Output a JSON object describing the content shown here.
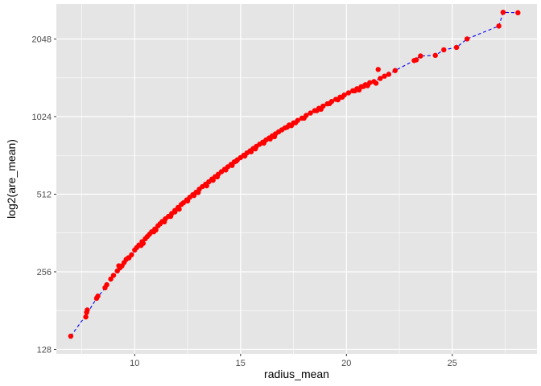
{
  "chart_data": {
    "type": "scatter",
    "title": "",
    "xlabel": "radius_mean",
    "ylabel": "log2(are_mean)",
    "y_scale": "log2",
    "xlim": [
      6.3,
      29.0
    ],
    "ylim": [
      123,
      2800
    ],
    "x_ticks": [
      10,
      15,
      20,
      25
    ],
    "x_tick_labels": [
      "10",
      "15",
      "20",
      "25"
    ],
    "y_ticks": [
      128,
      256,
      512,
      1024,
      2048
    ],
    "y_tick_labels": [
      "128",
      "256",
      "512",
      "1024",
      "2048"
    ],
    "grid": true,
    "legend": "none",
    "colors": {
      "panel_background": "#e5e5e5",
      "grid_major": "#ffffff",
      "points": "#ff0000",
      "trend_line": "#0000ff"
    },
    "series": [
      {
        "kind": "points",
        "points": [
          [
            6.98,
            144
          ],
          [
            7.69,
            171
          ],
          [
            7.73,
            178
          ],
          [
            7.76,
            182
          ],
          [
            8.2,
            202
          ],
          [
            8.26,
            206
          ],
          [
            8.6,
            222
          ],
          [
            8.68,
            228
          ],
          [
            8.87,
            240
          ],
          [
            9.0,
            248
          ],
          [
            9.18,
            258
          ],
          [
            9.3,
            265
          ],
          [
            9.4,
            270
          ],
          [
            9.5,
            278
          ],
          [
            9.6,
            286
          ],
          [
            9.73,
            290
          ],
          [
            9.85,
            298
          ],
          [
            10.0,
            311
          ],
          [
            10.1,
            318
          ],
          [
            10.2,
            325
          ],
          [
            10.35,
            335
          ],
          [
            10.5,
            344
          ],
          [
            10.6,
            351
          ],
          [
            10.7,
            358
          ],
          [
            10.8,
            366
          ],
          [
            10.95,
            375
          ],
          [
            11.1,
            386
          ],
          [
            11.2,
            393
          ],
          [
            11.3,
            401
          ],
          [
            11.45,
            411
          ],
          [
            11.6,
            420
          ],
          [
            11.75,
            431
          ],
          [
            11.9,
            443
          ],
          [
            12.05,
            455
          ],
          [
            12.2,
            467
          ],
          [
            12.3,
            474
          ],
          [
            12.45,
            486
          ],
          [
            12.6,
            498
          ],
          [
            12.75,
            510
          ],
          [
            12.9,
            521
          ],
          [
            13.05,
            535
          ],
          [
            13.2,
            548
          ],
          [
            13.35,
            560
          ],
          [
            13.5,
            572
          ],
          [
            13.65,
            586
          ],
          [
            13.8,
            599
          ],
          [
            13.95,
            612
          ],
          [
            14.1,
            626
          ],
          [
            14.25,
            640
          ],
          [
            14.4,
            654
          ],
          [
            14.55,
            668
          ],
          [
            14.7,
            683
          ],
          [
            14.85,
            696
          ],
          [
            15.0,
            710
          ],
          [
            15.15,
            725
          ],
          [
            15.3,
            740
          ],
          [
            15.45,
            754
          ],
          [
            15.6,
            770
          ],
          [
            15.75,
            785
          ],
          [
            15.9,
            800
          ],
          [
            16.05,
            815
          ],
          [
            16.2,
            831
          ],
          [
            16.35,
            846
          ],
          [
            16.5,
            862
          ],
          [
            16.65,
            878
          ],
          [
            16.8,
            894
          ],
          [
            16.95,
            910
          ],
          [
            17.1,
            926
          ],
          [
            17.3,
            950
          ],
          [
            17.5,
            968
          ],
          [
            17.7,
            990
          ],
          [
            17.9,
            1010
          ],
          [
            18.1,
            1035
          ],
          [
            18.3,
            1057
          ],
          [
            18.5,
            1080
          ],
          [
            18.7,
            1103
          ],
          [
            18.9,
            1125
          ],
          [
            19.1,
            1148
          ],
          [
            19.3,
            1172
          ],
          [
            19.5,
            1195
          ],
          [
            19.7,
            1218
          ],
          [
            19.9,
            1242
          ],
          [
            20.1,
            1266
          ],
          [
            20.3,
            1290
          ],
          [
            20.5,
            1314
          ],
          [
            20.7,
            1338
          ],
          [
            20.9,
            1362
          ],
          [
            21.1,
            1386
          ],
          [
            21.3,
            1400
          ],
          [
            21.6,
            1440
          ],
          [
            21.8,
            1470
          ],
          [
            22.0,
            1495
          ],
          [
            22.3,
            1545
          ],
          [
            23.2,
            1690
          ],
          [
            23.3,
            1700
          ],
          [
            23.5,
            1760
          ],
          [
            24.2,
            1770
          ],
          [
            24.6,
            1860
          ],
          [
            25.2,
            1900
          ],
          [
            25.7,
            2050
          ],
          [
            27.2,
            2300
          ],
          [
            27.4,
            2600
          ],
          [
            28.1,
            2590
          ],
          [
            9.25,
            270
          ],
          [
            10.4,
            330
          ],
          [
            11.0,
            372
          ],
          [
            11.7,
            420
          ],
          [
            12.1,
            448
          ],
          [
            12.5,
            482
          ],
          [
            13.0,
            520
          ],
          [
            13.4,
            552
          ],
          [
            13.9,
            598
          ],
          [
            14.3,
            636
          ],
          [
            14.8,
            688
          ],
          [
            15.2,
            720
          ],
          [
            15.7,
            768
          ],
          [
            16.1,
            808
          ],
          [
            16.6,
            856
          ],
          [
            17.2,
            932
          ],
          [
            17.6,
            970
          ],
          [
            18.0,
            1010
          ],
          [
            18.6,
            1080
          ],
          [
            19.2,
            1150
          ],
          [
            19.8,
            1218
          ],
          [
            20.4,
            1290
          ],
          [
            20.8,
            1340
          ],
          [
            21.4,
            1380
          ],
          [
            21.5,
            1560
          ],
          [
            21.0,
            1350
          ],
          [
            20.6,
            1300
          ],
          [
            19.6,
            1190
          ],
          [
            18.8,
            1094
          ],
          [
            17.4,
            945
          ],
          [
            16.4,
            838
          ],
          [
            15.5,
            748
          ],
          [
            14.6,
            662
          ],
          [
            13.7,
            580
          ],
          [
            12.8,
            506
          ],
          [
            11.9,
            437
          ],
          [
            11.4,
            400
          ],
          [
            10.9,
            366
          ],
          [
            10.3,
            324
          ],
          [
            9.7,
            290
          ]
        ]
      },
      {
        "kind": "trend_line",
        "style": "dashed",
        "points": [
          [
            6.98,
            144
          ],
          [
            7.73,
            175
          ],
          [
            8.2,
            202
          ],
          [
            8.7,
            226
          ],
          [
            9.2,
            255
          ],
          [
            9.7,
            286
          ],
          [
            10.2,
            320
          ],
          [
            11.0,
            378
          ],
          [
            12.0,
            448
          ],
          [
            13.0,
            527
          ],
          [
            14.0,
            615
          ],
          [
            15.0,
            710
          ],
          [
            16.0,
            810
          ],
          [
            17.0,
            915
          ],
          [
            18.0,
            1025
          ],
          [
            19.0,
            1135
          ],
          [
            20.0,
            1250
          ],
          [
            21.0,
            1370
          ],
          [
            22.0,
            1495
          ],
          [
            22.3,
            1545
          ],
          [
            23.2,
            1690
          ],
          [
            23.5,
            1760
          ],
          [
            24.2,
            1770
          ],
          [
            24.6,
            1860
          ],
          [
            25.2,
            1900
          ],
          [
            25.7,
            2050
          ],
          [
            27.2,
            2300
          ],
          [
            27.4,
            2600
          ],
          [
            28.1,
            2590
          ]
        ]
      }
    ]
  }
}
